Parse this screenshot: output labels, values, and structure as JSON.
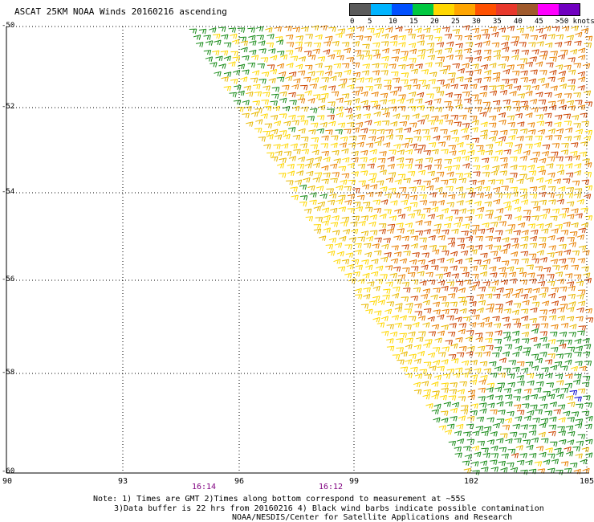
{
  "title": "ASCAT 25KM NOAA Winds 20160216 ascending",
  "legend": {
    "labels": [
      "0",
      "5",
      "10",
      "15",
      "20",
      "25",
      "30",
      "35",
      "40",
      "45",
      ">50 knots"
    ],
    "colors": [
      "#5a5a5a",
      "#00b4ff",
      "#0050ff",
      "#00c840",
      "#ffd700",
      "#ffa500",
      "#ff5000",
      "#e8382c",
      "#a05a2c",
      "#ff00ff",
      "#7000c0"
    ]
  },
  "map": {
    "lat_labels": [
      "-50",
      "-52",
      "-54",
      "-56",
      "-58",
      "-60"
    ],
    "lon_labels": [
      "90",
      "93",
      "96",
      "99",
      "102",
      "105"
    ],
    "time_labels": [
      "16:14",
      "16:12"
    ],
    "grid_color": "#000000",
    "barb_colors": {
      "green": "#1a8c1a",
      "yellow": "#ffd700",
      "gold": "#e8b800",
      "orange": "#e88000",
      "red_orange": "#cc4400",
      "blue": "#0000cc"
    }
  },
  "notes": {
    "line1": "Note: 1) Times are GMT 2)Times along bottom correspond to measurement at ~55S",
    "line2": "3)Data buffer is 22 hrs from 20160216 4) Black wind barbs indicate possible contamination",
    "line3": "NOAA/NESDIS/Center for Satellite Applications and Research"
  }
}
